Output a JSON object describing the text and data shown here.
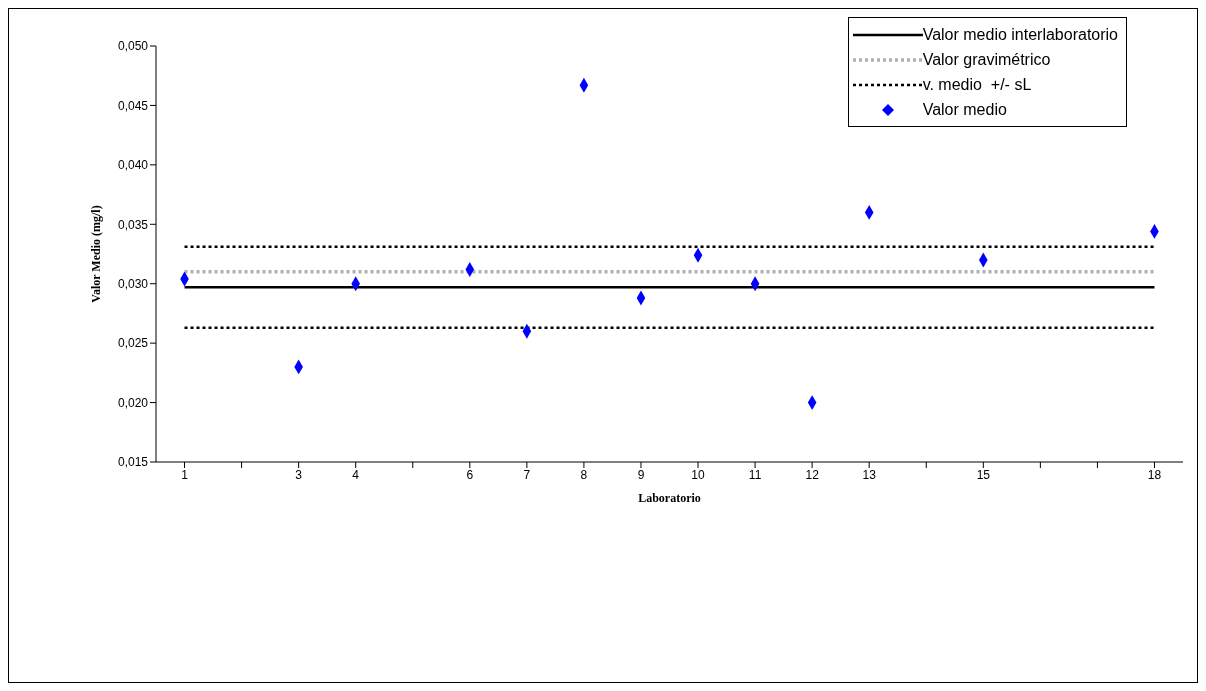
{
  "chart_data": {
    "type": "scatter",
    "xlabel": "Laboratorio",
    "ylabel": "Valor Medio (mg/l)",
    "categories": [
      "1",
      null,
      "3",
      "4",
      null,
      "6",
      "7",
      "8",
      "9",
      "10",
      "11",
      "12",
      "13",
      null,
      "15",
      null,
      null,
      "18"
    ],
    "ylim": [
      0.015,
      0.05
    ],
    "yticks": [
      {
        "value": 0.015,
        "label": "0,015"
      },
      {
        "value": 0.02,
        "label": "0,020"
      },
      {
        "value": 0.025,
        "label": "0,025"
      },
      {
        "value": 0.03,
        "label": "0,030"
      },
      {
        "value": 0.035,
        "label": "0,035"
      },
      {
        "value": 0.04,
        "label": "0,040"
      },
      {
        "value": 0.045,
        "label": "0,045"
      },
      {
        "value": 0.05,
        "label": "0,050"
      }
    ],
    "legend": "top right",
    "grid": false,
    "series": [
      {
        "name": "Valor medio interlaboratorio",
        "type": "line",
        "color": "#000000",
        "line_style": "solid",
        "values": [
          0.0297,
          0.0297,
          0.0297,
          0.0297,
          0.0297,
          0.0297,
          0.0297,
          0.0297,
          0.0297,
          0.0297,
          0.0297,
          0.0297,
          0.0297,
          0.0297,
          0.0297,
          0.0297,
          0.0297,
          0.0297
        ]
      },
      {
        "name": "Valor gravimétrico",
        "type": "line",
        "color": "#b0b0b0",
        "line_style": "dotted",
        "values": [
          0.031,
          0.031,
          0.031,
          0.031,
          0.031,
          0.031,
          0.031,
          0.031,
          0.031,
          0.031,
          0.031,
          0.031,
          0.031,
          0.031,
          0.031,
          0.031,
          0.031,
          0.031
        ]
      },
      {
        "name": "v. medio  +/- sL",
        "type": "line",
        "color": "#000000",
        "line_style": "dotted",
        "values": [
          0.0331,
          0.0331,
          0.0331,
          0.0331,
          0.0331,
          0.0331,
          0.0331,
          0.0331,
          0.0331,
          0.0331,
          0.0331,
          0.0331,
          0.0331,
          0.0331,
          0.0331,
          0.0331,
          0.0331,
          0.0331
        ]
      },
      {
        "type": "line",
        "color": "#000000",
        "line_style": "dotted",
        "values": [
          0.0263,
          0.0263,
          0.0263,
          0.0263,
          0.0263,
          0.0263,
          0.0263,
          0.0263,
          0.0263,
          0.0263,
          0.0263,
          0.0263,
          0.0263,
          0.0263,
          0.0263,
          0.0263,
          0.0263,
          0.0263
        ]
      },
      {
        "name": "Valor medio",
        "color": "#0000ff",
        "marker": "diamond",
        "values": [
          0.0304,
          null,
          0.023,
          0.03,
          null,
          0.0312,
          0.026,
          0.0467,
          0.0288,
          0.0324,
          0.03,
          0.02,
          0.036,
          null,
          0.032,
          null,
          null,
          0.0344
        ]
      }
    ]
  }
}
